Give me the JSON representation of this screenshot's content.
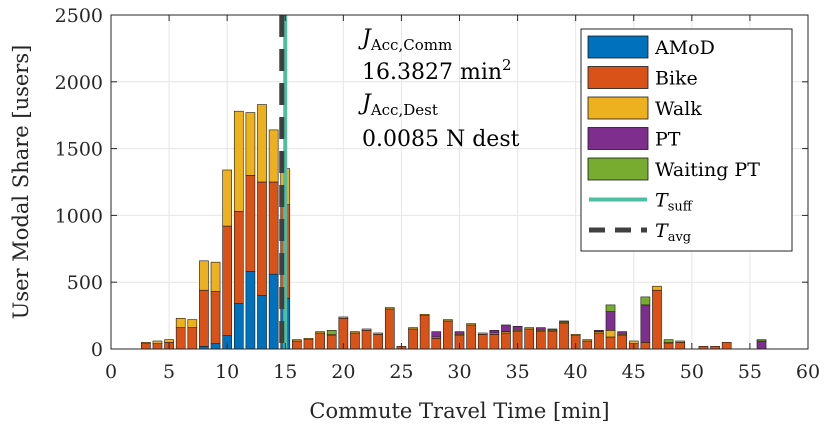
{
  "chart_data": {
    "type": "bar",
    "stacked": true,
    "xlabel": "Commute Travel Time [min]",
    "ylabel": "User Modal Share [users]",
    "xlim": [
      0,
      60
    ],
    "ylim": [
      0,
      2500
    ],
    "xticks": [
      "0",
      "5",
      "10",
      "15",
      "20",
      "25",
      "30",
      "35",
      "40",
      "45",
      "50",
      "55",
      "60"
    ],
    "yticks": [
      "0",
      "500",
      "1000",
      "1500",
      "2000",
      "2500"
    ],
    "grid": true,
    "legend_position": "top-right",
    "bin_width": 1,
    "x": [
      1,
      2,
      3,
      4,
      5,
      6,
      7,
      8,
      9,
      10,
      11,
      12,
      13,
      14,
      15,
      16,
      17,
      18,
      19,
      20,
      21,
      22,
      23,
      24,
      25,
      26,
      27,
      28,
      29,
      30,
      31,
      32,
      33,
      34,
      35,
      36,
      37,
      38,
      39,
      40,
      41,
      42,
      43,
      44,
      45,
      46,
      47,
      48,
      49,
      50,
      51,
      52,
      53,
      54,
      55,
      56,
      57,
      58,
      59,
      60
    ],
    "series": [
      {
        "name": "AMoD",
        "color": "#0072BD",
        "values": [
          0,
          0,
          0,
          0,
          0,
          0,
          0,
          20,
          40,
          100,
          340,
          580,
          400,
          560,
          380,
          0,
          0,
          0,
          0,
          0,
          0,
          0,
          0,
          0,
          0,
          0,
          0,
          0,
          0,
          0,
          0,
          0,
          0,
          0,
          0,
          0,
          0,
          0,
          0,
          0,
          0,
          0,
          0,
          0,
          0,
          0,
          0,
          0,
          0,
          0,
          0,
          0,
          0,
          0,
          0,
          0,
          0,
          0,
          0,
          0
        ]
      },
      {
        "name": "Bike",
        "color": "#D95319",
        "values": [
          0,
          0,
          40,
          40,
          50,
          160,
          160,
          420,
          390,
          820,
          690,
          720,
          850,
          690,
          700,
          60,
          70,
          120,
          100,
          230,
          120,
          140,
          110,
          300,
          20,
          150,
          250,
          80,
          210,
          100,
          180,
          110,
          110,
          120,
          130,
          150,
          130,
          130,
          190,
          100,
          60,
          120,
          90,
          100,
          40,
          50,
          440,
          40,
          50,
          0,
          20,
          20,
          50,
          0,
          0,
          0,
          0,
          0,
          0,
          0
        ]
      },
      {
        "name": "Walk",
        "color": "#EDB120",
        "values": [
          0,
          0,
          10,
          20,
          20,
          70,
          60,
          220,
          220,
          420,
          750,
          470,
          580,
          390,
          270,
          10,
          10,
          10,
          10,
          10,
          10,
          10,
          10,
          10,
          0,
          10,
          10,
          10,
          10,
          10,
          10,
          10,
          10,
          10,
          10,
          10,
          10,
          10,
          10,
          10,
          10,
          10,
          50,
          10,
          20,
          0,
          30,
          10,
          10,
          0,
          0,
          0,
          0,
          0,
          0,
          0,
          0,
          0,
          0,
          0
        ]
      },
      {
        "name": "PT",
        "color": "#7E2F8E",
        "values": [
          0,
          0,
          0,
          0,
          0,
          0,
          0,
          0,
          0,
          0,
          0,
          0,
          0,
          0,
          0,
          0,
          0,
          0,
          0,
          0,
          0,
          0,
          0,
          0,
          0,
          0,
          0,
          40,
          0,
          20,
          0,
          0,
          20,
          50,
          30,
          0,
          20,
          10,
          10,
          0,
          0,
          10,
          140,
          20,
          0,
          280,
          0,
          0,
          0,
          0,
          0,
          0,
          0,
          0,
          0,
          60,
          0,
          0,
          0,
          0
        ]
      },
      {
        "name": "Waiting PT",
        "color": "#77AC30",
        "values": [
          0,
          0,
          0,
          0,
          0,
          0,
          0,
          0,
          0,
          0,
          0,
          0,
          0,
          0,
          0,
          0,
          0,
          0,
          30,
          0,
          0,
          0,
          0,
          0,
          0,
          0,
          0,
          0,
          0,
          0,
          0,
          0,
          0,
          0,
          0,
          0,
          0,
          0,
          0,
          0,
          0,
          0,
          50,
          0,
          0,
          60,
          0,
          20,
          0,
          0,
          0,
          0,
          0,
          0,
          0,
          10,
          0,
          0,
          0,
          0
        ]
      }
    ],
    "lines": [
      {
        "name": "T_suff",
        "x": 15,
        "style": "solid",
        "color": "#4DBEA0"
      },
      {
        "name": "T_avg",
        "x": 14.7,
        "style": "dashed",
        "color": "#404040"
      }
    ],
    "annotations": {
      "j1_sym": "J",
      "j1_sub": "Acc,Comm",
      "j1_value": "16.3827 min",
      "j1_exp": "2",
      "j2_sym": "J",
      "j2_sub": "Acc,Dest",
      "j2_value": "0.0085 N dest"
    },
    "legend": [
      {
        "label": "AMoD",
        "kind": "patch",
        "color": "#0072BD"
      },
      {
        "label": "Bike",
        "kind": "patch",
        "color": "#D95319"
      },
      {
        "label": "Walk",
        "kind": "patch",
        "color": "#EDB120"
      },
      {
        "label": "PT",
        "kind": "patch",
        "color": "#7E2F8E"
      },
      {
        "label": "Waiting PT",
        "kind": "patch",
        "color": "#77AC30"
      },
      {
        "label": "T",
        "sub": "suff",
        "kind": "solid",
        "color": "#4DBEA0"
      },
      {
        "label": "T",
        "sub": "avg",
        "kind": "dashed",
        "color": "#404040"
      }
    ]
  }
}
